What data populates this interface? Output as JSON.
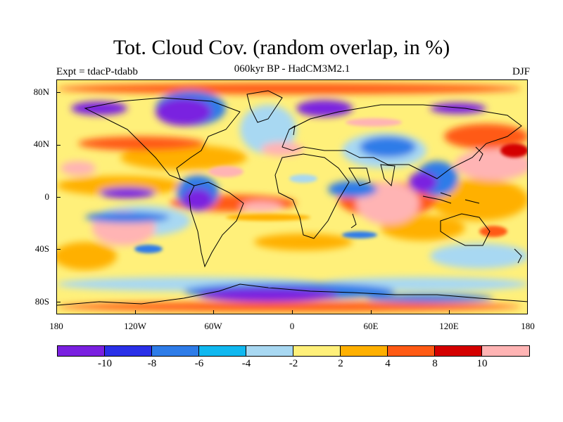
{
  "title": "Tot. Cloud Cov. (random overlap, in %)",
  "subtitle": "060kyr BP - HadCM3M2.1",
  "experiment": "Expt = tdacP-tdabb",
  "season": "DJF",
  "map": {
    "projection": "cylindrical equidistant",
    "lon_range": [
      -180,
      180
    ],
    "lat_range": [
      -90,
      90
    ],
    "lat_tick_labels": [
      "80N",
      "40N",
      "0",
      "40S",
      "80S"
    ],
    "lon_tick_labels": [
      "180",
      "120W",
      "60W",
      "0",
      "60E",
      "120E",
      "180"
    ],
    "field": "total cloud cover difference (%)",
    "colors": {
      "land_outline": "#000000"
    }
  },
  "colorbar": {
    "colors": [
      "#7a20e0",
      "#2a30e8",
      "#2e7ce8",
      "#10b8f0",
      "#a8d8f2",
      "#fff07a",
      "#ffb000",
      "#ff5a14",
      "#d40000",
      "#ffb4b4"
    ],
    "labels": [
      "-10",
      "-8",
      "-6",
      "-4",
      "-2",
      "2",
      "4",
      "8",
      "10"
    ]
  }
}
